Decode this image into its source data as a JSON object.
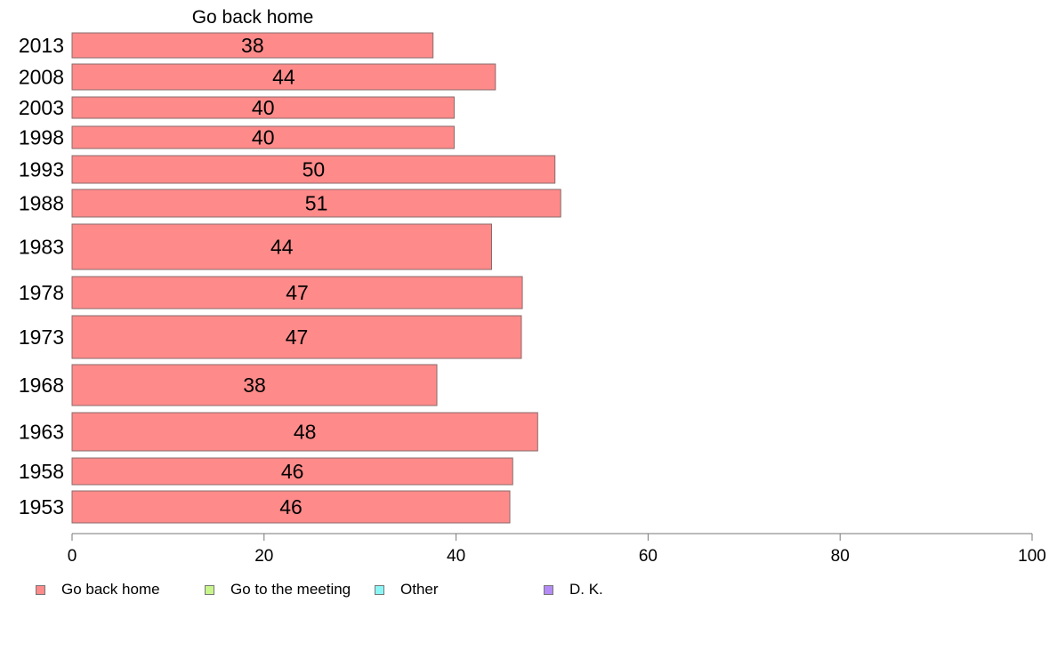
{
  "chart_data": {
    "type": "bar",
    "orientation": "horizontal",
    "title": "Go back home",
    "categories": [
      "2013",
      "2008",
      "2003",
      "1998",
      "1993",
      "1988",
      "1983",
      "1978",
      "1973",
      "1968",
      "1963",
      "1958",
      "1953"
    ],
    "series": [
      {
        "name": "Go back home",
        "color": "#ff8a8a",
        "values": [
          37.6,
          44.1,
          39.8,
          39.8,
          50.3,
          50.9,
          43.7,
          46.9,
          46.8,
          38.0,
          48.5,
          45.9,
          45.6
        ],
        "labels": [
          "38",
          "44",
          "40",
          "40",
          "50",
          "51",
          "44",
          "47",
          "47",
          "38",
          "48",
          "46",
          "46"
        ]
      }
    ],
    "xlim": [
      0,
      100
    ],
    "xticks": [
      "0",
      "20",
      "40",
      "60",
      "80",
      "100"
    ],
    "grid": false,
    "legend": {
      "position": "bottom",
      "entries": [
        {
          "label": "Go back home",
          "color": "#ff8a8a"
        },
        {
          "label": "Go to the meeting",
          "color": "#c8f58a"
        },
        {
          "label": "Other",
          "color": "#8af5f5"
        },
        {
          "label": "D. K.",
          "color": "#b48af5"
        }
      ]
    }
  }
}
